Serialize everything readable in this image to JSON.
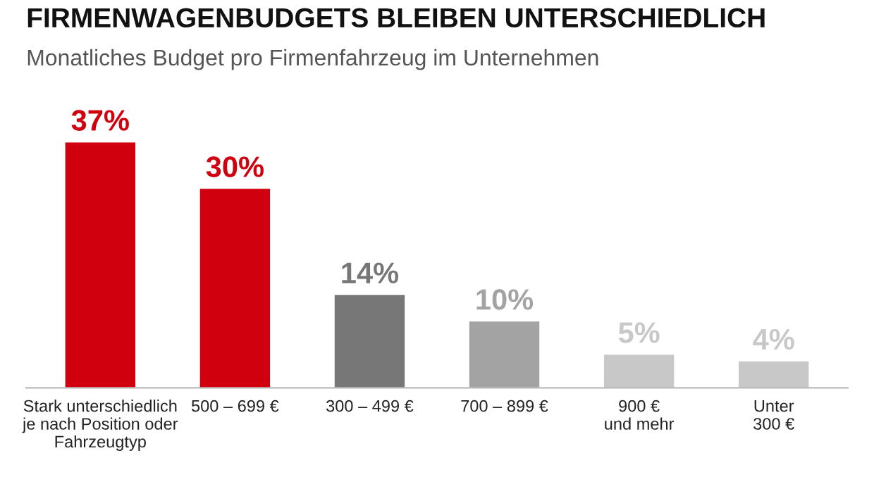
{
  "chart_data": {
    "type": "bar",
    "title": "FIRMENWAGENBUDGETS BLEIBEN UNTERSCHIEDLICH",
    "subtitle": "Monatliches Budget pro Firmenfahrzeug im Unternehmen",
    "categories": [
      "Stark unterschiedlich\nje nach Position oder\nFahrzeugtyp",
      "500 – 699 €",
      "300 – 499 €",
      "700 – 899 €",
      "900 €\nund mehr",
      "Unter\n300 €"
    ],
    "values": [
      37,
      30,
      14,
      10,
      5,
      4
    ],
    "value_labels": [
      "37%",
      "30%",
      "14%",
      "10%",
      "5%",
      "4%"
    ],
    "colors": [
      "#d0000f",
      "#d0000f",
      "#777777",
      "#a3a3a3",
      "#c8c8c8",
      "#c8c8c8"
    ],
    "grid": false,
    "legend": false
  }
}
